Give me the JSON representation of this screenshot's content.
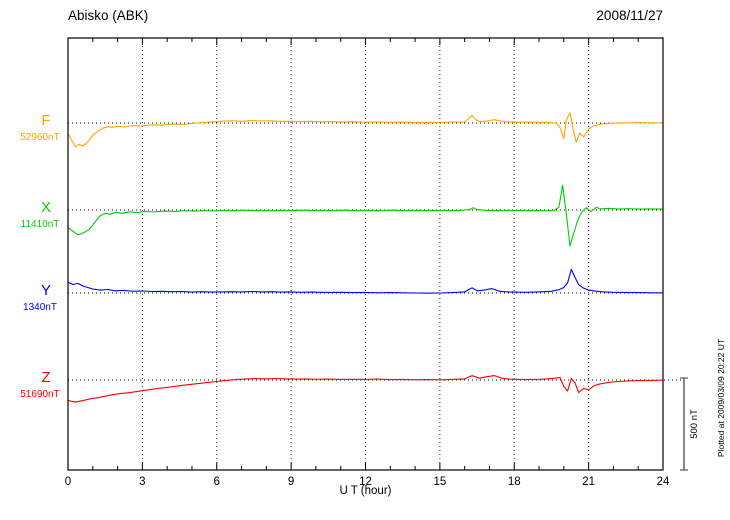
{
  "chart_data": {
    "type": "line",
    "title": "Abisko (ABK)",
    "date": "2008/11/27",
    "xlabel": "U T (hour)",
    "x_range": [
      0,
      24
    ],
    "x_ticks": [
      0,
      3,
      6,
      9,
      12,
      15,
      18,
      21,
      24
    ],
    "x_minor_step": 1,
    "grid": "dotted-vertical-every-3h",
    "scale_bar": {
      "label": "500 nT",
      "nT": 500
    },
    "plotted_at": "Plotted at 2009/03/09 20:22 UT",
    "series": [
      {
        "name": "F",
        "baseline_label": "52960nT",
        "baseline_value_nT": 52960,
        "color": "#FFA500",
        "points": [
          [
            0,
            -55
          ],
          [
            0.15,
            -95
          ],
          [
            0.3,
            -130
          ],
          [
            0.45,
            -115
          ],
          [
            0.6,
            -125
          ],
          [
            0.75,
            -110
          ],
          [
            0.9,
            -85
          ],
          [
            1.05,
            -60
          ],
          [
            1.2,
            -45
          ],
          [
            1.4,
            -28
          ],
          [
            1.6,
            -20
          ],
          [
            1.8,
            -24
          ],
          [
            2.0,
            -18
          ],
          [
            2.3,
            -22
          ],
          [
            2.6,
            -14
          ],
          [
            3.0,
            -16
          ],
          [
            3.4,
            -10
          ],
          [
            3.8,
            -12
          ],
          [
            4.2,
            -6
          ],
          [
            4.6,
            -8
          ],
          [
            5.0,
            -2
          ],
          [
            5.4,
            2
          ],
          [
            5.8,
            6
          ],
          [
            6.2,
            10
          ],
          [
            6.6,
            12
          ],
          [
            7.0,
            9
          ],
          [
            7.4,
            13
          ],
          [
            7.8,
            11
          ],
          [
            8.2,
            12
          ],
          [
            8.6,
            9
          ],
          [
            9.0,
            10
          ],
          [
            9.4,
            7
          ],
          [
            9.8,
            9
          ],
          [
            10.2,
            6
          ],
          [
            10.6,
            8
          ],
          [
            11.0,
            5
          ],
          [
            11.5,
            7
          ],
          [
            12.0,
            4
          ],
          [
            12.5,
            6
          ],
          [
            13.0,
            3
          ],
          [
            13.5,
            5
          ],
          [
            14.0,
            2
          ],
          [
            14.5,
            4
          ],
          [
            15.0,
            3
          ],
          [
            15.5,
            5
          ],
          [
            16.0,
            6
          ],
          [
            16.3,
            42
          ],
          [
            16.45,
            18
          ],
          [
            16.6,
            8
          ],
          [
            16.9,
            10
          ],
          [
            17.2,
            18
          ],
          [
            17.5,
            9
          ],
          [
            17.8,
            6
          ],
          [
            18.2,
            4
          ],
          [
            18.6,
            5
          ],
          [
            19.0,
            3
          ],
          [
            19.4,
            4
          ],
          [
            19.7,
            -2
          ],
          [
            19.85,
            -25
          ],
          [
            20.0,
            -85
          ],
          [
            20.1,
            15
          ],
          [
            20.25,
            55
          ],
          [
            20.4,
            -50
          ],
          [
            20.5,
            -105
          ],
          [
            20.65,
            -55
          ],
          [
            20.8,
            -75
          ],
          [
            21.0,
            -35
          ],
          [
            21.2,
            -15
          ],
          [
            21.5,
            -6
          ],
          [
            21.8,
            -2
          ],
          [
            22.2,
            1
          ],
          [
            22.6,
            0
          ],
          [
            23.0,
            2
          ],
          [
            23.5,
            1
          ],
          [
            24,
            1
          ]
        ]
      },
      {
        "name": "X",
        "baseline_label": "11410nT",
        "baseline_value_nT": 11410,
        "color": "#00CC00",
        "points": [
          [
            0,
            -95
          ],
          [
            0.2,
            -115
          ],
          [
            0.4,
            -135
          ],
          [
            0.55,
            -128
          ],
          [
            0.7,
            -118
          ],
          [
            0.85,
            -105
          ],
          [
            1.0,
            -82
          ],
          [
            1.15,
            -55
          ],
          [
            1.3,
            -32
          ],
          [
            1.5,
            -18
          ],
          [
            1.7,
            -24
          ],
          [
            1.9,
            -12
          ],
          [
            2.2,
            -18
          ],
          [
            2.5,
            -10
          ],
          [
            2.8,
            -14
          ],
          [
            3.1,
            -8
          ],
          [
            3.5,
            -10
          ],
          [
            3.9,
            -6
          ],
          [
            4.3,
            -8
          ],
          [
            4.7,
            -4
          ],
          [
            5.1,
            -6
          ],
          [
            5.5,
            -3
          ],
          [
            5.9,
            -5
          ],
          [
            6.3,
            -2
          ],
          [
            6.7,
            -4
          ],
          [
            7.1,
            -1
          ],
          [
            7.5,
            -3
          ],
          [
            7.9,
            -2
          ],
          [
            8.3,
            -4
          ],
          [
            8.7,
            -2
          ],
          [
            9.1,
            -3
          ],
          [
            9.5,
            -1
          ],
          [
            9.9,
            -3
          ],
          [
            10.3,
            -2
          ],
          [
            10.7,
            -3
          ],
          [
            11.1,
            -1
          ],
          [
            11.5,
            -3
          ],
          [
            12.0,
            -2
          ],
          [
            12.5,
            -3
          ],
          [
            13.0,
            -1
          ],
          [
            13.5,
            -3
          ],
          [
            14.0,
            -2
          ],
          [
            14.5,
            -3
          ],
          [
            15.0,
            -2
          ],
          [
            15.4,
            -4
          ],
          [
            15.8,
            -2
          ],
          [
            16.2,
            2
          ],
          [
            16.35,
            12
          ],
          [
            16.5,
            2
          ],
          [
            16.9,
            -2
          ],
          [
            17.3,
            -3
          ],
          [
            17.7,
            -2
          ],
          [
            18.1,
            -3
          ],
          [
            18.5,
            -2
          ],
          [
            18.9,
            -3
          ],
          [
            19.3,
            -4
          ],
          [
            19.6,
            -2
          ],
          [
            19.8,
            15
          ],
          [
            19.95,
            135
          ],
          [
            20.1,
            -20
          ],
          [
            20.25,
            -195
          ],
          [
            20.4,
            -125
          ],
          [
            20.55,
            -60
          ],
          [
            20.7,
            -15
          ],
          [
            20.9,
            12
          ],
          [
            21.1,
            -8
          ],
          [
            21.3,
            14
          ],
          [
            21.5,
            6
          ],
          [
            21.8,
            9
          ],
          [
            22.2,
            5
          ],
          [
            22.6,
            7
          ],
          [
            23.0,
            5
          ],
          [
            23.5,
            6
          ],
          [
            24,
            5
          ]
        ]
      },
      {
        "name": "Y",
        "baseline_label": "1340nT",
        "baseline_value_nT": 1340,
        "color": "#0000FF",
        "points": [
          [
            0,
            58
          ],
          [
            0.2,
            46
          ],
          [
            0.4,
            52
          ],
          [
            0.6,
            38
          ],
          [
            0.8,
            30
          ],
          [
            1.0,
            22
          ],
          [
            1.3,
            16
          ],
          [
            1.6,
            19
          ],
          [
            1.9,
            12
          ],
          [
            2.2,
            14
          ],
          [
            2.6,
            10
          ],
          [
            3.0,
            11
          ],
          [
            3.4,
            8
          ],
          [
            3.8,
            9
          ],
          [
            4.2,
            7
          ],
          [
            4.6,
            8
          ],
          [
            5.0,
            5
          ],
          [
            5.4,
            7
          ],
          [
            5.8,
            5
          ],
          [
            6.2,
            6
          ],
          [
            6.6,
            7
          ],
          [
            7.0,
            6
          ],
          [
            7.4,
            8
          ],
          [
            7.8,
            6
          ],
          [
            8.2,
            7
          ],
          [
            8.6,
            5
          ],
          [
            9.0,
            6
          ],
          [
            9.4,
            4
          ],
          [
            9.8,
            5
          ],
          [
            10.2,
            4
          ],
          [
            10.6,
            3
          ],
          [
            11.0,
            4
          ],
          [
            11.5,
            2
          ],
          [
            12.0,
            3
          ],
          [
            12.5,
            1
          ],
          [
            13.0,
            2
          ],
          [
            13.5,
            1
          ],
          [
            14.0,
            0
          ],
          [
            14.5,
            -1
          ],
          [
            15.0,
            0
          ],
          [
            15.5,
            2
          ],
          [
            16.0,
            6
          ],
          [
            16.3,
            28
          ],
          [
            16.5,
            12
          ],
          [
            16.8,
            16
          ],
          [
            17.1,
            24
          ],
          [
            17.4,
            10
          ],
          [
            17.7,
            6
          ],
          [
            18.0,
            5
          ],
          [
            18.4,
            4
          ],
          [
            18.8,
            5
          ],
          [
            19.2,
            7
          ],
          [
            19.5,
            9
          ],
          [
            19.8,
            18
          ],
          [
            20.0,
            30
          ],
          [
            20.15,
            55
          ],
          [
            20.3,
            128
          ],
          [
            20.45,
            85
          ],
          [
            20.6,
            45
          ],
          [
            20.8,
            26
          ],
          [
            21.0,
            16
          ],
          [
            21.3,
            10
          ],
          [
            21.6,
            6
          ],
          [
            22.0,
            4
          ],
          [
            22.5,
            3
          ],
          [
            23.0,
            2
          ],
          [
            23.5,
            1
          ],
          [
            24,
            1
          ]
        ]
      },
      {
        "name": "Z",
        "baseline_label": "51690nT",
        "baseline_value_nT": 51690,
        "color": "#FF0000",
        "points": [
          [
            0,
            -112
          ],
          [
            0.3,
            -120
          ],
          [
            0.6,
            -112
          ],
          [
            0.9,
            -102
          ],
          [
            1.2,
            -96
          ],
          [
            1.5,
            -88
          ],
          [
            1.8,
            -80
          ],
          [
            2.1,
            -74
          ],
          [
            2.4,
            -70
          ],
          [
            2.7,
            -64
          ],
          [
            3.0,
            -58
          ],
          [
            3.3,
            -52
          ],
          [
            3.6,
            -46
          ],
          [
            4.0,
            -40
          ],
          [
            4.4,
            -33
          ],
          [
            4.8,
            -26
          ],
          [
            5.2,
            -20
          ],
          [
            5.6,
            -14
          ],
          [
            6.0,
            -8
          ],
          [
            6.4,
            -2
          ],
          [
            6.8,
            3
          ],
          [
            7.2,
            6
          ],
          [
            7.6,
            8
          ],
          [
            8.0,
            6
          ],
          [
            8.4,
            8
          ],
          [
            8.8,
            6
          ],
          [
            9.2,
            5
          ],
          [
            9.6,
            6
          ],
          [
            10.0,
            4
          ],
          [
            10.5,
            5
          ],
          [
            11.0,
            3
          ],
          [
            11.5,
            4
          ],
          [
            12.0,
            3
          ],
          [
            12.5,
            5
          ],
          [
            13.0,
            2
          ],
          [
            13.5,
            3
          ],
          [
            14.0,
            1
          ],
          [
            14.5,
            2
          ],
          [
            15.0,
            1
          ],
          [
            15.5,
            3
          ],
          [
            16.0,
            6
          ],
          [
            16.3,
            24
          ],
          [
            16.6,
            10
          ],
          [
            16.9,
            18
          ],
          [
            17.2,
            24
          ],
          [
            17.5,
            10
          ],
          [
            17.8,
            5
          ],
          [
            18.2,
            3
          ],
          [
            18.6,
            2
          ],
          [
            19.0,
            4
          ],
          [
            19.3,
            6
          ],
          [
            19.6,
            9
          ],
          [
            19.85,
            14
          ],
          [
            20.0,
            -35
          ],
          [
            20.15,
            -60
          ],
          [
            20.3,
            8
          ],
          [
            20.45,
            -15
          ],
          [
            20.6,
            -68
          ],
          [
            20.8,
            -45
          ],
          [
            21.0,
            -55
          ],
          [
            21.2,
            -32
          ],
          [
            21.5,
            -20
          ],
          [
            21.8,
            -13
          ],
          [
            22.2,
            -8
          ],
          [
            22.6,
            -5
          ],
          [
            23.0,
            -3
          ],
          [
            23.5,
            -2
          ],
          [
            24,
            -1
          ]
        ]
      }
    ]
  }
}
